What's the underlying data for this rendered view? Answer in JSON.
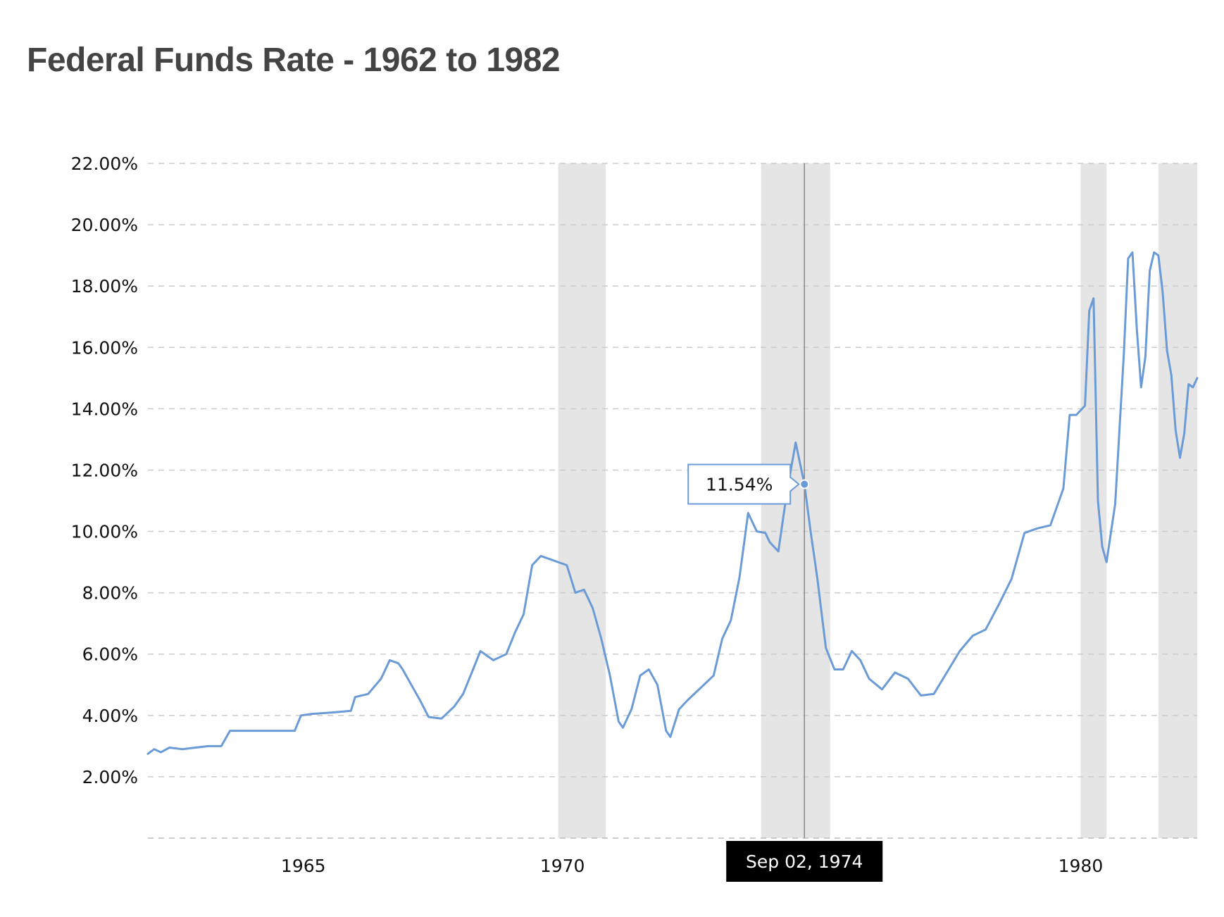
{
  "chart_data": {
    "type": "line",
    "title": "Federal Funds Rate - 1962 to 1982",
    "xlabel": "",
    "ylabel": "",
    "x_ticks": [
      "1965",
      "1970",
      "1980"
    ],
    "y_ticks": [
      "2.00%",
      "4.00%",
      "6.00%",
      "8.00%",
      "10.00%",
      "12.00%",
      "14.00%",
      "16.00%",
      "18.00%",
      "20.00%",
      "22.00%"
    ],
    "xlim": [
      "1962-01-01",
      "1982-04-01"
    ],
    "ylim": [
      0,
      22
    ],
    "grid": true,
    "line_color": "#6b9bd6",
    "shade_color": "#e5e5e5",
    "recession_periods": [
      [
        "1969-12-01",
        "1970-11-01"
      ],
      [
        "1973-11-01",
        "1975-03-01"
      ],
      [
        "1980-01-01",
        "1980-07-01"
      ],
      [
        "1981-07-01",
        "1982-04-01"
      ]
    ],
    "tooltip": {
      "date": "1974-09-02",
      "date_label": "Sep 02, 1974",
      "value": 11.54,
      "value_label": "11.54%"
    },
    "series": [
      {
        "values": [
          [
            "1962-01-01",
            2.75
          ],
          [
            "1962-02-15",
            2.9
          ],
          [
            "1962-04-01",
            2.8
          ],
          [
            "1962-06-01",
            2.95
          ],
          [
            "1962-09-01",
            2.9
          ],
          [
            "1962-12-01",
            2.95
          ],
          [
            "1963-03-01",
            3.0
          ],
          [
            "1963-06-01",
            3.0
          ],
          [
            "1963-08-01",
            3.5
          ],
          [
            "1963-12-01",
            3.5
          ],
          [
            "1964-06-01",
            3.5
          ],
          [
            "1964-11-01",
            3.5
          ],
          [
            "1964-12-15",
            4.0
          ],
          [
            "1965-03-01",
            4.05
          ],
          [
            "1965-08-01",
            4.1
          ],
          [
            "1965-12-01",
            4.15
          ],
          [
            "1966-01-01",
            4.6
          ],
          [
            "1966-04-01",
            4.7
          ],
          [
            "1966-07-01",
            5.2
          ],
          [
            "1966-09-01",
            5.8
          ],
          [
            "1966-11-01",
            5.7
          ],
          [
            "1966-12-01",
            5.5
          ],
          [
            "1967-02-01",
            5.0
          ],
          [
            "1967-04-01",
            4.5
          ],
          [
            "1967-06-01",
            3.95
          ],
          [
            "1967-09-01",
            3.9
          ],
          [
            "1967-12-01",
            4.3
          ],
          [
            "1968-02-01",
            4.7
          ],
          [
            "1968-04-01",
            5.4
          ],
          [
            "1968-06-01",
            6.1
          ],
          [
            "1968-09-01",
            5.8
          ],
          [
            "1968-12-01",
            6.0
          ],
          [
            "1969-02-01",
            6.7
          ],
          [
            "1969-04-01",
            7.3
          ],
          [
            "1969-06-01",
            8.9
          ],
          [
            "1969-08-01",
            9.2
          ],
          [
            "1969-10-01",
            9.1
          ],
          [
            "1969-12-01",
            9.0
          ],
          [
            "1970-02-01",
            8.9
          ],
          [
            "1970-04-01",
            8.0
          ],
          [
            "1970-06-01",
            8.1
          ],
          [
            "1970-08-01",
            7.5
          ],
          [
            "1970-10-01",
            6.5
          ],
          [
            "1970-12-01",
            5.3
          ],
          [
            "1971-02-01",
            3.8
          ],
          [
            "1971-03-01",
            3.6
          ],
          [
            "1971-05-01",
            4.2
          ],
          [
            "1971-07-01",
            5.3
          ],
          [
            "1971-09-01",
            5.5
          ],
          [
            "1971-11-01",
            5.0
          ],
          [
            "1972-01-01",
            3.5
          ],
          [
            "1972-02-01",
            3.3
          ],
          [
            "1972-04-01",
            4.2
          ],
          [
            "1972-06-01",
            4.5
          ],
          [
            "1972-09-01",
            4.9
          ],
          [
            "1972-12-01",
            5.3
          ],
          [
            "1973-02-01",
            6.5
          ],
          [
            "1973-04-01",
            7.1
          ],
          [
            "1973-06-01",
            8.5
          ],
          [
            "1973-08-01",
            10.6
          ],
          [
            "1973-10-01",
            10.0
          ],
          [
            "1973-12-01",
            9.95
          ],
          [
            "1974-01-01",
            9.65
          ],
          [
            "1974-03-01",
            9.35
          ],
          [
            "1974-05-01",
            11.3
          ],
          [
            "1974-07-01",
            12.9
          ],
          [
            "1974-09-02",
            11.54
          ],
          [
            "1974-10-15",
            10.0
          ],
          [
            "1974-12-01",
            8.5
          ],
          [
            "1975-02-01",
            6.2
          ],
          [
            "1975-04-01",
            5.5
          ],
          [
            "1975-06-01",
            5.5
          ],
          [
            "1975-08-01",
            6.1
          ],
          [
            "1975-10-01",
            5.8
          ],
          [
            "1975-12-01",
            5.2
          ],
          [
            "1976-03-01",
            4.85
          ],
          [
            "1976-06-01",
            5.4
          ],
          [
            "1976-09-01",
            5.2
          ],
          [
            "1976-12-01",
            4.65
          ],
          [
            "1977-03-01",
            4.7
          ],
          [
            "1977-06-01",
            5.4
          ],
          [
            "1977-09-01",
            6.1
          ],
          [
            "1977-12-01",
            6.6
          ],
          [
            "1978-03-01",
            6.8
          ],
          [
            "1978-06-01",
            7.6
          ],
          [
            "1978-09-01",
            8.45
          ],
          [
            "1978-12-01",
            9.95
          ],
          [
            "1979-03-01",
            10.1
          ],
          [
            "1979-06-01",
            10.2
          ],
          [
            "1979-09-01",
            11.4
          ],
          [
            "1979-10-15",
            13.8
          ],
          [
            "1979-12-01",
            13.8
          ],
          [
            "1980-02-01",
            14.1
          ],
          [
            "1980-03-01",
            17.2
          ],
          [
            "1980-04-01",
            17.6
          ],
          [
            "1980-05-01",
            11.0
          ],
          [
            "1980-06-01",
            9.5
          ],
          [
            "1980-07-01",
            9.0
          ],
          [
            "1980-09-01",
            10.9
          ],
          [
            "1980-11-01",
            15.8
          ],
          [
            "1980-12-01",
            18.9
          ],
          [
            "1981-01-01",
            19.1
          ],
          [
            "1981-02-01",
            16.6
          ],
          [
            "1981-03-01",
            14.7
          ],
          [
            "1981-04-01",
            15.7
          ],
          [
            "1981-05-01",
            18.5
          ],
          [
            "1981-06-01",
            19.1
          ],
          [
            "1981-07-01",
            19.0
          ],
          [
            "1981-08-01",
            17.8
          ],
          [
            "1981-09-01",
            15.9
          ],
          [
            "1981-10-01",
            15.1
          ],
          [
            "1981-11-01",
            13.3
          ],
          [
            "1981-12-01",
            12.4
          ],
          [
            "1982-01-01",
            13.2
          ],
          [
            "1982-02-01",
            14.8
          ],
          [
            "1982-03-01",
            14.7
          ],
          [
            "1982-04-01",
            15.0
          ]
        ]
      }
    ]
  }
}
